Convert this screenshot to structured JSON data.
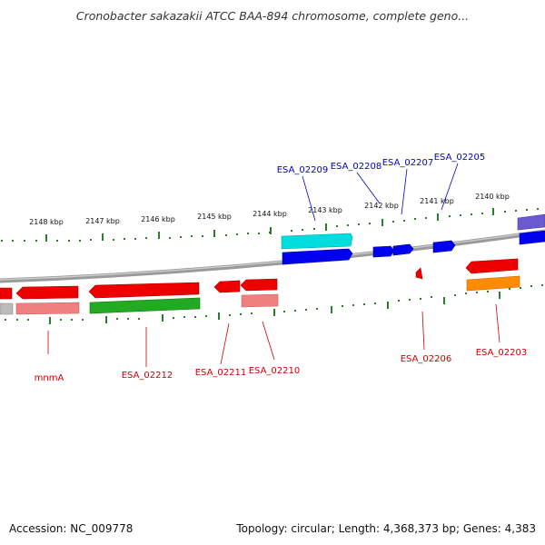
{
  "title": "Cronobacter sakazakii ATCC BAA-894 chromosome, complete geno...",
  "footer": {
    "accession": "Accession: NC_009778",
    "summary": "Topology: circular; Length: 4,368,373 bp; Genes: 4,383"
  },
  "ruler": {
    "upper_ticks": [
      "2148 kbp",
      "2147 kbp",
      "2146 kbp",
      "2145 kbp",
      "2144 kbp",
      "2143 kbp",
      "2142 kbp",
      "2141 kbp",
      "2140 kbp"
    ]
  },
  "gene_labels": {
    "top": [
      "ESA_02209",
      "ESA_02208",
      "ESA_02207",
      "ESA_02205"
    ],
    "bottom": [
      "mnmA",
      "ESA_02212",
      "ESA_02211",
      "ESA_02210",
      "ESA_02206",
      "ESA_02203"
    ]
  },
  "colors": {
    "top_label": "#0000cc",
    "bottom_label": "#cc0000",
    "tick": "#2a7d2a",
    "backbone": "#808080",
    "cds_forward": "#0000ee",
    "cds_reverse": "#ee0000",
    "cyan": "#00dddd",
    "green": "#22aa22",
    "salmon": "#f08080",
    "orange": "#ff8c00",
    "purple": "#6a5acd",
    "grey": "#bbbbbb"
  }
}
